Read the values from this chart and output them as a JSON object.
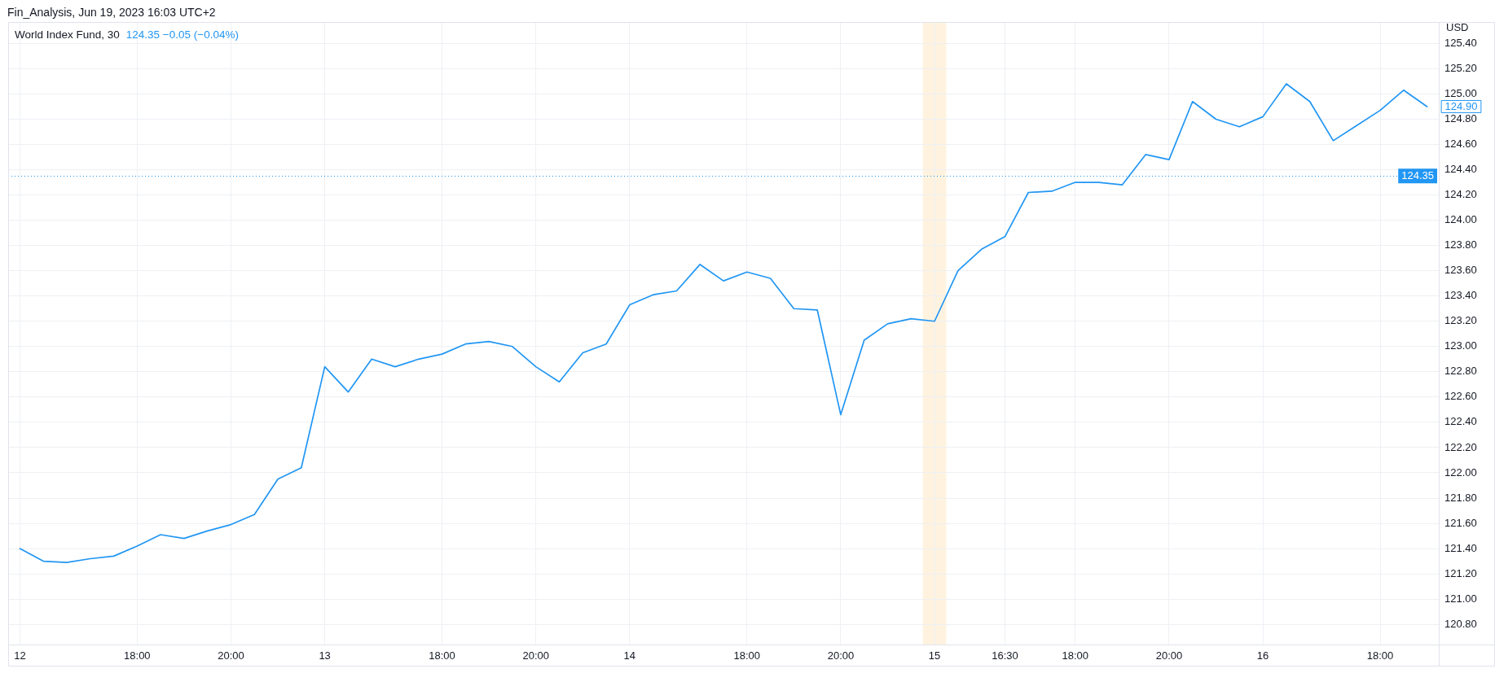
{
  "chart_data": {
    "type": "line",
    "title": "World Index Fund, 30",
    "ylabel": "USD",
    "annotations": [
      "Fin_Analysis, Jun 19, 2023 16:03 UTC+2",
      "124.35  −0.05 (−0.04%)"
    ],
    "categories": [
      "12",
      null,
      null,
      null,
      null,
      "18:00",
      null,
      null,
      null,
      "20:00",
      null,
      null,
      null,
      "13",
      null,
      null,
      null,
      null,
      "18:00",
      null,
      null,
      null,
      "20:00",
      null,
      null,
      null,
      "14",
      null,
      null,
      null,
      null,
      "18:00",
      null,
      null,
      null,
      "20:00",
      null,
      null,
      null,
      "15",
      null,
      null,
      "16:30",
      null,
      null,
      "18:00",
      null,
      null,
      null,
      "20:00",
      null,
      null,
      null,
      "16",
      null,
      null,
      null,
      null,
      "18:00",
      null,
      null
    ],
    "values": [
      121.4,
      121.3,
      121.29,
      121.32,
      121.34,
      121.42,
      121.51,
      121.48,
      121.54,
      121.59,
      121.67,
      121.95,
      122.04,
      122.84,
      122.64,
      122.9,
      122.84,
      122.9,
      122.94,
      123.02,
      123.04,
      123.0,
      122.84,
      122.72,
      122.95,
      123.02,
      123.33,
      123.41,
      123.44,
      123.65,
      123.52,
      123.59,
      123.54,
      123.3,
      123.29,
      122.46,
      123.05,
      123.18,
      123.22,
      123.2,
      123.6,
      123.77,
      123.87,
      124.22,
      124.23,
      124.3,
      124.3,
      124.28,
      124.52,
      124.48,
      124.94,
      124.8,
      124.74,
      124.82,
      125.08,
      124.94,
      124.63,
      124.75,
      124.87,
      125.03,
      124.9
    ],
    "value_labels": [
      null,
      null,
      null,
      null,
      null,
      null,
      null,
      null,
      null,
      null,
      null,
      null,
      null,
      null,
      null,
      null,
      null,
      null,
      null,
      null,
      null,
      null,
      null,
      null,
      null,
      null,
      null,
      null,
      null,
      null,
      null,
      null,
      null,
      null,
      null,
      null,
      null,
      null,
      null,
      null,
      null,
      null,
      null,
      null,
      null,
      null,
      null,
      null,
      null,
      null,
      null,
      null,
      null,
      null,
      null,
      null,
      null,
      null,
      null,
      null,
      "124.90"
    ],
    "color": "#2196f3",
    "line_style": "solid",
    "grid": true,
    "ylim": [
      120.64,
      125.57
    ],
    "yticks": [
      {
        "value": 120.8,
        "label": "120.80"
      },
      {
        "value": 121.0,
        "label": "121.00"
      },
      {
        "value": 121.2,
        "label": "121.20"
      },
      {
        "value": 121.4,
        "label": "121.40"
      },
      {
        "value": 121.6,
        "label": "121.60"
      },
      {
        "value": 121.8,
        "label": "121.80"
      },
      {
        "value": 122.0,
        "label": "122.00"
      },
      {
        "value": 122.2,
        "label": "122.20"
      },
      {
        "value": 122.4,
        "label": "122.40"
      },
      {
        "value": 122.6,
        "label": "122.60"
      },
      {
        "value": 122.8,
        "label": "122.80"
      },
      {
        "value": 123.0,
        "label": "123.00"
      },
      {
        "value": 123.2,
        "label": "123.20"
      },
      {
        "value": 123.4,
        "label": "123.40"
      },
      {
        "value": 123.6,
        "label": "123.60"
      },
      {
        "value": 123.8,
        "label": "123.80"
      },
      {
        "value": 124.0,
        "label": "124.00"
      },
      {
        "value": 124.2,
        "label": "124.20"
      },
      {
        "value": 124.4,
        "label": "124.40"
      },
      {
        "value": 124.6,
        "label": "124.60"
      },
      {
        "value": 124.8,
        "label": "124.80"
      },
      {
        "value": 125.0,
        "label": "125.00"
      },
      {
        "value": 125.2,
        "label": "125.20"
      },
      {
        "value": 125.4,
        "label": "125.40"
      }
    ],
    "ref_lines": [
      {
        "axis": "y",
        "value": 124.35,
        "label": "124.35",
        "color": "#2196f3",
        "line_style": "dotted"
      }
    ],
    "bands": [
      {
        "axis": "x",
        "from": "15",
        "to": "15",
        "color": "#fff3e0"
      }
    ]
  }
}
